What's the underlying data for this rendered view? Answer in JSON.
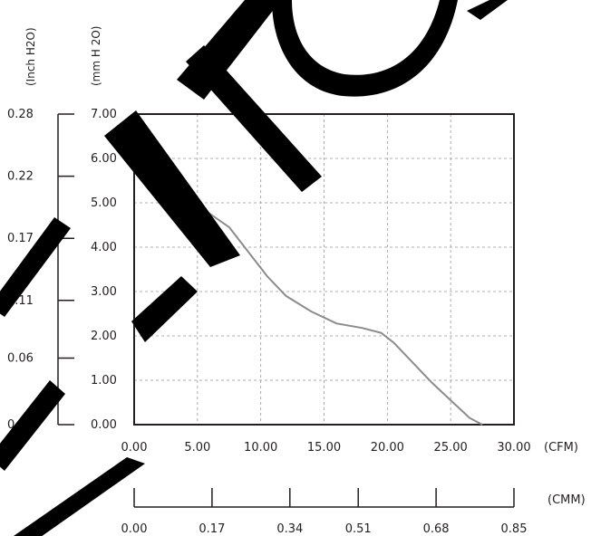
{
  "chart_data": {
    "type": "line",
    "title": "",
    "xlabel": "(CFM)",
    "ylabel": "(mm H 2O)",
    "y2label": "(Inch H2O)",
    "x2label": "(CMM)",
    "xlim": [
      0,
      30
    ],
    "ylim": [
      0,
      7
    ],
    "grid": true,
    "x_ticks": [
      "0.00",
      "5.00",
      "10.00",
      "15.00",
      "20.00",
      "25.00",
      "30.00"
    ],
    "y_ticks": [
      "0.00",
      "1.00",
      "2.00",
      "3.00",
      "4.00",
      "5.00",
      "6.00",
      "7.00"
    ],
    "y2_ticks": [
      {
        "value": 0,
        "label": "0.00"
      },
      {
        "value": 1.5,
        "label": "0.06"
      },
      {
        "value": 2.8,
        "label": "0.11"
      },
      {
        "value": 4.2,
        "label": "0.17"
      },
      {
        "value": 5.6,
        "label": "0.22"
      },
      {
        "value": 7,
        "label": "0.28"
      }
    ],
    "x2_ticks": [
      {
        "value": 0,
        "label": "0.00"
      },
      {
        "value": 6.15,
        "label": "0.17"
      },
      {
        "value": 12.3,
        "label": "0.34"
      },
      {
        "value": 17.7,
        "label": "0.51"
      },
      {
        "value": 23.85,
        "label": "0.68"
      },
      {
        "value": 30,
        "label": "0.85"
      }
    ],
    "series": [
      {
        "x": [
          0,
          2,
          4,
          6,
          7.5,
          9,
          10.5,
          12,
          14,
          16,
          18,
          19.5,
          20.5,
          22,
          23.5,
          25,
          26.5,
          27.5
        ],
        "y": [
          5.8,
          5.45,
          5.1,
          4.75,
          4.45,
          3.9,
          3.35,
          2.9,
          2.55,
          2.28,
          2.18,
          2.07,
          1.85,
          1.4,
          0.95,
          0.55,
          0.15,
          0
        ]
      }
    ]
  },
  "colors": {
    "curve": "#8c8c8c",
    "grid": "#999999",
    "frame": "#231f20",
    "watermark": "#000000"
  }
}
